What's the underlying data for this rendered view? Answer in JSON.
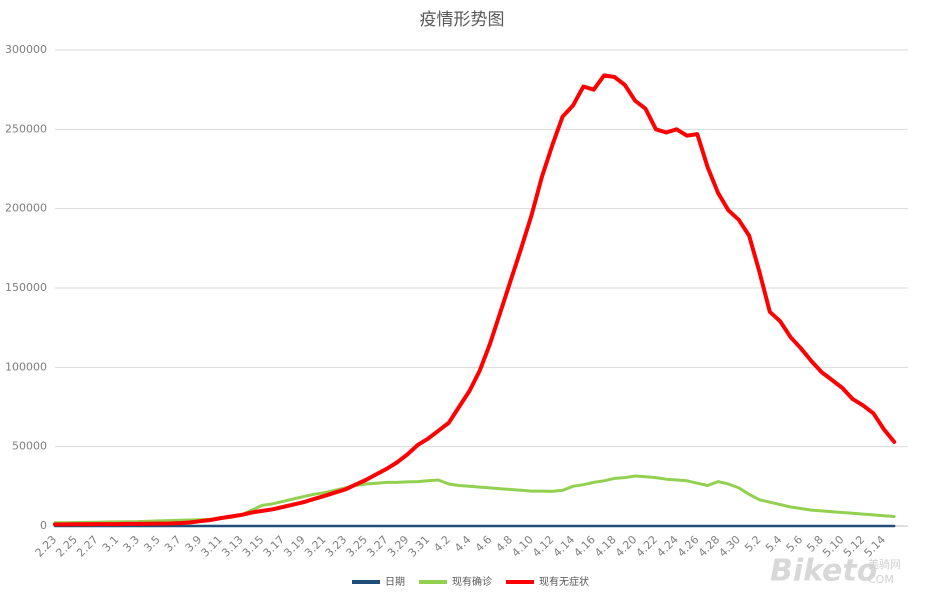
{
  "chart_data": {
    "type": "line",
    "title": "疫情形势图",
    "categories": [
      "2.23",
      null,
      "2.25",
      null,
      "2.27",
      null,
      "3.1",
      null,
      "3.3",
      null,
      "3.5",
      null,
      "3.7",
      null,
      "3.9",
      null,
      "3.11",
      null,
      "3.13",
      null,
      "3.15",
      null,
      "3.17",
      null,
      "3.19",
      null,
      "3.21",
      null,
      "3.23",
      null,
      "3.25",
      null,
      "3.27",
      null,
      "3.29",
      null,
      "3.31",
      null,
      "4.2",
      null,
      "4.4",
      null,
      "4.6",
      null,
      "4.8",
      null,
      "4.10",
      null,
      "4.12",
      null,
      "4.14",
      null,
      "4.16",
      null,
      "4.18",
      null,
      "4.20",
      null,
      "4.22",
      null,
      "4.24",
      null,
      "4.26",
      null,
      "4.28",
      null,
      "4.30",
      null,
      "5.2",
      null,
      "5.4",
      null,
      "5.6",
      null,
      "5.8",
      null,
      "5.10",
      null,
      "5.12",
      null,
      "5.14",
      null
    ],
    "series": [
      {
        "name": "日期",
        "color": "#1f4e79",
        "values": [
          0,
          0,
          0,
          0,
          0,
          0,
          0,
          0,
          0,
          0,
          0,
          0,
          0,
          0,
          0,
          0,
          0,
          0,
          0,
          0,
          0,
          0,
          0,
          0,
          0,
          0,
          0,
          0,
          0,
          0,
          0,
          0,
          0,
          0,
          0,
          0,
          0,
          0,
          0,
          0,
          0,
          0,
          0,
          0,
          0,
          0,
          0,
          0,
          0,
          0,
          0,
          0,
          0,
          0,
          0,
          0,
          0,
          0,
          0,
          0,
          0,
          0,
          0,
          0,
          0,
          0,
          0,
          0,
          0,
          0,
          0,
          0,
          0,
          0,
          0,
          0,
          0,
          0,
          0,
          0,
          0,
          0
        ]
      },
      {
        "name": "现有确诊",
        "color": "#92d050",
        "values": [
          2000,
          2100,
          2200,
          2300,
          2400,
          2500,
          2600,
          2700,
          2800,
          3000,
          3200,
          3400,
          3600,
          3800,
          4000,
          4300,
          4800,
          5500,
          7000,
          10000,
          13000,
          14000,
          15500,
          17000,
          18500,
          20000,
          21000,
          22500,
          24000,
          25500,
          26500,
          27000,
          27500,
          27500,
          27800,
          28000,
          28500,
          29000,
          26500,
          25500,
          25000,
          24500,
          24000,
          23500,
          23000,
          22500,
          22000,
          22000,
          21800,
          22500,
          25000,
          26000,
          27500,
          28500,
          30000,
          30500,
          31500,
          31000,
          30500,
          29500,
          29000,
          28500,
          27000,
          25500,
          28000,
          26500,
          24000,
          20000,
          16500,
          15000,
          13500,
          12000,
          11000,
          10000,
          9500,
          9000,
          8500,
          8000,
          7500,
          7000,
          6500,
          6000
        ]
      },
      {
        "name": "现有无症状",
        "color": "#ff0000",
        "values": [
          1000,
          1000,
          1100,
          1100,
          1200,
          1200,
          1200,
          1300,
          1300,
          1400,
          1500,
          1600,
          1800,
          2200,
          3000,
          3800,
          5000,
          6000,
          7000,
          8500,
          9500,
          10500,
          12000,
          13500,
          15000,
          17000,
          19000,
          21000,
          23000,
          26000,
          29000,
          32500,
          36000,
          40000,
          45000,
          51000,
          55000,
          60000,
          65000,
          75000,
          85000,
          98000,
          115000,
          135000,
          155000,
          175000,
          196000,
          220000,
          240000,
          258000,
          265000,
          277000,
          275000,
          284000,
          283000,
          278000,
          268000,
          263000,
          250000,
          248000,
          250000,
          246000,
          247000,
          226000,
          210000,
          199000,
          193000,
          183000,
          160000,
          135000,
          129000,
          119000,
          112000,
          104000,
          97000,
          92000,
          87000,
          80000,
          76000,
          71000,
          61000,
          53000
        ]
      }
    ],
    "ylim": [
      0,
      300000
    ],
    "yticks": [
      0,
      50000,
      100000,
      150000,
      200000,
      250000,
      300000
    ],
    "grid": true,
    "legend": "bottom",
    "watermark": [
      "Biketo",
      "美骑网",
      "COM"
    ]
  }
}
